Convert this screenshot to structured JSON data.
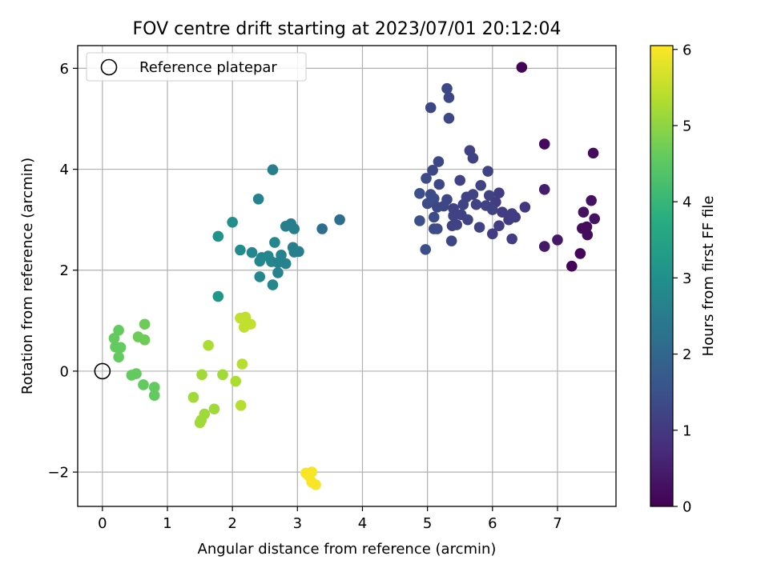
{
  "chart_data": {
    "type": "scatter",
    "title": "FOV centre drift starting at 2023/07/01 20:12:04",
    "xlabel": "Angular distance from reference (arcmin)",
    "ylabel": "Rotation from reference (arcmin)",
    "xlim": [
      -0.38,
      7.9
    ],
    "ylim": [
      -2.68,
      6.45
    ],
    "xticks": [
      0,
      1,
      2,
      3,
      4,
      5,
      6,
      7
    ],
    "yticks": [
      -2,
      0,
      2,
      4,
      6
    ],
    "grid": true,
    "legend": {
      "placement": "top-left",
      "entries": [
        "Reference platepar"
      ]
    },
    "reference_point": {
      "x": 0,
      "y": 0,
      "label": "Reference platepar"
    },
    "colorbar": {
      "label": "Hours from first FF file",
      "colormap": "viridis",
      "range": [
        0,
        6.05
      ],
      "ticks": [
        0,
        1,
        2,
        3,
        4,
        5,
        6
      ]
    },
    "points": [
      {
        "x": 6.45,
        "y": 6.02,
        "c": 0.05
      },
      {
        "x": 6.8,
        "y": 4.5,
        "c": 0.15
      },
      {
        "x": 7.55,
        "y": 4.32,
        "c": 0.15
      },
      {
        "x": 7.52,
        "y": 3.38,
        "c": 0.3
      },
      {
        "x": 7.4,
        "y": 3.15,
        "c": 0.3
      },
      {
        "x": 7.57,
        "y": 3.02,
        "c": 0.3
      },
      {
        "x": 7.38,
        "y": 2.83,
        "c": 0.2
      },
      {
        "x": 7.45,
        "y": 2.86,
        "c": 0.2
      },
      {
        "x": 7.46,
        "y": 2.7,
        "c": 0.2
      },
      {
        "x": 7.35,
        "y": 2.33,
        "c": 0.1
      },
      {
        "x": 7.22,
        "y": 2.08,
        "c": 0.05
      },
      {
        "x": 7.0,
        "y": 2.6,
        "c": 0.4
      },
      {
        "x": 6.8,
        "y": 3.6,
        "c": 0.5
      },
      {
        "x": 6.8,
        "y": 2.47,
        "c": 0.4
      },
      {
        "x": 5.3,
        "y": 5.6,
        "c": 1.3
      },
      {
        "x": 5.33,
        "y": 5.42,
        "c": 1.3
      },
      {
        "x": 5.05,
        "y": 5.22,
        "c": 1.3
      },
      {
        "x": 5.33,
        "y": 5.01,
        "c": 1.3
      },
      {
        "x": 5.65,
        "y": 4.37,
        "c": 1.2
      },
      {
        "x": 5.7,
        "y": 4.22,
        "c": 1.2
      },
      {
        "x": 5.17,
        "y": 4.15,
        "c": 1.3
      },
      {
        "x": 5.08,
        "y": 3.98,
        "c": 1.3
      },
      {
        "x": 5.93,
        "y": 3.96,
        "c": 1.2
      },
      {
        "x": 4.98,
        "y": 3.82,
        "c": 1.4
      },
      {
        "x": 5.5,
        "y": 3.78,
        "c": 1.2
      },
      {
        "x": 5.82,
        "y": 3.68,
        "c": 1.2
      },
      {
        "x": 5.18,
        "y": 3.7,
        "c": 1.3
      },
      {
        "x": 4.88,
        "y": 3.52,
        "c": 1.5
      },
      {
        "x": 5.05,
        "y": 3.5,
        "c": 1.4
      },
      {
        "x": 5.1,
        "y": 3.42,
        "c": 1.4
      },
      {
        "x": 5.3,
        "y": 3.4,
        "c": 1.3
      },
      {
        "x": 5.6,
        "y": 3.45,
        "c": 1.2
      },
      {
        "x": 5.7,
        "y": 3.5,
        "c": 1.2
      },
      {
        "x": 5.95,
        "y": 3.48,
        "c": 1.2
      },
      {
        "x": 6.1,
        "y": 3.53,
        "c": 1.1
      },
      {
        "x": 5.0,
        "y": 3.32,
        "c": 1.4
      },
      {
        "x": 5.15,
        "y": 3.25,
        "c": 1.3
      },
      {
        "x": 5.25,
        "y": 3.27,
        "c": 1.3
      },
      {
        "x": 5.4,
        "y": 3.22,
        "c": 1.2
      },
      {
        "x": 5.55,
        "y": 3.3,
        "c": 1.2
      },
      {
        "x": 5.75,
        "y": 3.3,
        "c": 1.2
      },
      {
        "x": 5.9,
        "y": 3.28,
        "c": 1.2
      },
      {
        "x": 6.05,
        "y": 3.35,
        "c": 1.1
      },
      {
        "x": 6.15,
        "y": 3.15,
        "c": 1.1
      },
      {
        "x": 6.3,
        "y": 3.12,
        "c": 1.1
      },
      {
        "x": 6.35,
        "y": 3.05,
        "c": 1.1
      },
      {
        "x": 6.5,
        "y": 3.25,
        "c": 1.0
      },
      {
        "x": 5.1,
        "y": 3.05,
        "c": 1.4
      },
      {
        "x": 5.4,
        "y": 3.08,
        "c": 1.2
      },
      {
        "x": 5.52,
        "y": 3.1,
        "c": 1.2
      },
      {
        "x": 5.62,
        "y": 3.0,
        "c": 1.2
      },
      {
        "x": 4.88,
        "y": 2.98,
        "c": 1.5
      },
      {
        "x": 5.45,
        "y": 2.9,
        "c": 1.2
      },
      {
        "x": 5.38,
        "y": 2.88,
        "c": 1.2
      },
      {
        "x": 5.8,
        "y": 2.85,
        "c": 1.2
      },
      {
        "x": 6.1,
        "y": 2.88,
        "c": 1.1
      },
      {
        "x": 5.1,
        "y": 2.82,
        "c": 1.4
      },
      {
        "x": 5.15,
        "y": 2.82,
        "c": 1.4
      },
      {
        "x": 6.0,
        "y": 2.72,
        "c": 1.1
      },
      {
        "x": 6.3,
        "y": 2.62,
        "c": 1.1
      },
      {
        "x": 5.37,
        "y": 2.58,
        "c": 1.3
      },
      {
        "x": 4.97,
        "y": 2.41,
        "c": 1.5
      },
      {
        "x": 6.25,
        "y": 3.0,
        "c": 1.1
      },
      {
        "x": 6.0,
        "y": 3.2,
        "c": 1.2
      },
      {
        "x": 2.62,
        "y": 3.99,
        "c": 2.6
      },
      {
        "x": 2.4,
        "y": 3.41,
        "c": 2.7
      },
      {
        "x": 3.65,
        "y": 3.0,
        "c": 2.2
      },
      {
        "x": 2.0,
        "y": 2.95,
        "c": 3.0
      },
      {
        "x": 2.82,
        "y": 2.87,
        "c": 2.6
      },
      {
        "x": 2.9,
        "y": 2.92,
        "c": 2.6
      },
      {
        "x": 2.95,
        "y": 2.82,
        "c": 2.6
      },
      {
        "x": 3.38,
        "y": 2.82,
        "c": 2.2
      },
      {
        "x": 1.78,
        "y": 2.67,
        "c": 3.1
      },
      {
        "x": 2.65,
        "y": 2.55,
        "c": 2.8
      },
      {
        "x": 2.93,
        "y": 2.45,
        "c": 2.6
      },
      {
        "x": 2.12,
        "y": 2.4,
        "c": 2.9
      },
      {
        "x": 2.3,
        "y": 2.35,
        "c": 2.8
      },
      {
        "x": 2.95,
        "y": 2.36,
        "c": 2.6
      },
      {
        "x": 3.02,
        "y": 2.37,
        "c": 2.6
      },
      {
        "x": 2.45,
        "y": 2.25,
        "c": 2.8
      },
      {
        "x": 2.55,
        "y": 2.28,
        "c": 2.8
      },
      {
        "x": 2.75,
        "y": 2.3,
        "c": 2.7
      },
      {
        "x": 2.42,
        "y": 2.18,
        "c": 2.8
      },
      {
        "x": 2.6,
        "y": 2.17,
        "c": 2.8
      },
      {
        "x": 2.7,
        "y": 2.15,
        "c": 2.7
      },
      {
        "x": 2.82,
        "y": 2.13,
        "c": 2.7
      },
      {
        "x": 2.7,
        "y": 1.95,
        "c": 2.7
      },
      {
        "x": 2.42,
        "y": 1.87,
        "c": 2.8
      },
      {
        "x": 2.62,
        "y": 1.71,
        "c": 2.8
      },
      {
        "x": 1.78,
        "y": 1.48,
        "c": 3.2
      },
      {
        "x": 0.18,
        "y": 0.65,
        "c": 4.6
      },
      {
        "x": 0.25,
        "y": 0.81,
        "c": 4.6
      },
      {
        "x": 0.2,
        "y": 0.48,
        "c": 4.6
      },
      {
        "x": 0.28,
        "y": 0.47,
        "c": 4.6
      },
      {
        "x": 0.25,
        "y": 0.28,
        "c": 4.6
      },
      {
        "x": 0.65,
        "y": 0.93,
        "c": 4.7
      },
      {
        "x": 0.55,
        "y": 0.68,
        "c": 4.7
      },
      {
        "x": 0.65,
        "y": 0.62,
        "c": 4.7
      },
      {
        "x": 0.45,
        "y": -0.08,
        "c": 4.6
      },
      {
        "x": 0.52,
        "y": -0.05,
        "c": 4.6
      },
      {
        "x": 0.63,
        "y": -0.27,
        "c": 4.6
      },
      {
        "x": 0.8,
        "y": -0.32,
        "c": 4.6
      },
      {
        "x": 0.8,
        "y": -0.48,
        "c": 4.6
      },
      {
        "x": 2.12,
        "y": 1.05,
        "c": 5.5
      },
      {
        "x": 2.2,
        "y": 1.07,
        "c": 5.5
      },
      {
        "x": 2.28,
        "y": 0.93,
        "c": 5.5
      },
      {
        "x": 2.18,
        "y": 0.87,
        "c": 5.5
      },
      {
        "x": 1.63,
        "y": 0.51,
        "c": 5.3
      },
      {
        "x": 2.15,
        "y": 0.14,
        "c": 5.4
      },
      {
        "x": 1.53,
        "y": -0.07,
        "c": 5.2
      },
      {
        "x": 1.85,
        "y": -0.07,
        "c": 5.2
      },
      {
        "x": 2.05,
        "y": -0.2,
        "c": 5.3
      },
      {
        "x": 1.4,
        "y": -0.52,
        "c": 5.2
      },
      {
        "x": 2.13,
        "y": -0.68,
        "c": 5.4
      },
      {
        "x": 1.72,
        "y": -0.75,
        "c": 5.2
      },
      {
        "x": 1.57,
        "y": -0.85,
        "c": 5.2
      },
      {
        "x": 1.52,
        "y": -0.97,
        "c": 5.2
      },
      {
        "x": 1.5,
        "y": -1.02,
        "c": 5.2
      },
      {
        "x": 3.13,
        "y": -2.02,
        "c": 6.0
      },
      {
        "x": 3.22,
        "y": -2.0,
        "c": 6.0
      },
      {
        "x": 3.18,
        "y": -2.08,
        "c": 6.0
      },
      {
        "x": 3.22,
        "y": -2.2,
        "c": 6.0
      },
      {
        "x": 3.28,
        "y": -2.25,
        "c": 6.0
      }
    ]
  }
}
